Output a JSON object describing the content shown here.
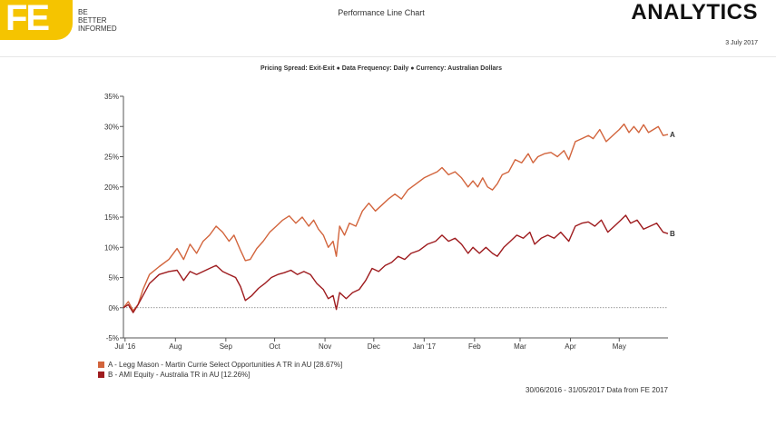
{
  "header": {
    "logo_text": "FE",
    "tagline": [
      "BE",
      "BETTER",
      "INFORMED"
    ],
    "title": "Performance Line Chart",
    "brand": "ANALYTICS",
    "date": "3 July 2017"
  },
  "params": "Pricing Spread: Exit-Exit ● Data Frequency: Daily ● Currency: Australian Dollars",
  "footer": {
    "source": "30/06/2016 - 31/05/2017 Data from FE 2017"
  },
  "chart_data": {
    "type": "line",
    "title": "Performance Line Chart",
    "ylim": [
      -5,
      35
    ],
    "y_ticks": [
      -5,
      0,
      5,
      10,
      15,
      20,
      25,
      30,
      35
    ],
    "y_tick_labels": [
      "-5%",
      "0%",
      "5%",
      "10%",
      "15%",
      "20%",
      "25%",
      "30%",
      "35%"
    ],
    "x_range": [
      "2016-06-30",
      "2017-05-31"
    ],
    "x_ticks": [
      "2016-07-01",
      "2016-08-01",
      "2016-09-01",
      "2016-10-01",
      "2016-11-01",
      "2016-12-01",
      "2017-01-01",
      "2017-02-01",
      "2017-03-01",
      "2017-04-01",
      "2017-05-01"
    ],
    "x_tick_labels": [
      "Jul '16",
      "Aug",
      "Sep",
      "Oct",
      "Nov",
      "Dec",
      "Jan '17",
      "Feb",
      "Mar",
      "Apr",
      "May"
    ],
    "zero_line": true,
    "grid": false,
    "legend_position": "bottom-left",
    "series": [
      {
        "name": "A - Legg Mason - Martin Currie Select Opportunities A TR in AU [28.67%]",
        "end_label": "A",
        "color": "#d2643c",
        "points": [
          [
            "2016-06-30",
            0
          ],
          [
            "2016-07-03",
            1
          ],
          [
            "2016-07-06",
            -0.5
          ],
          [
            "2016-07-09",
            0.5
          ],
          [
            "2016-07-12",
            3
          ],
          [
            "2016-07-16",
            5.5
          ],
          [
            "2016-07-22",
            6.8
          ],
          [
            "2016-07-28",
            8
          ],
          [
            "2016-08-02",
            9.8
          ],
          [
            "2016-08-06",
            8
          ],
          [
            "2016-08-10",
            10.5
          ],
          [
            "2016-08-14",
            9
          ],
          [
            "2016-08-18",
            11
          ],
          [
            "2016-08-22",
            12
          ],
          [
            "2016-08-26",
            13.5
          ],
          [
            "2016-08-30",
            12.5
          ],
          [
            "2016-09-03",
            11
          ],
          [
            "2016-09-06",
            12
          ],
          [
            "2016-09-10",
            9.5
          ],
          [
            "2016-09-13",
            7.8
          ],
          [
            "2016-09-16",
            8
          ],
          [
            "2016-09-20",
            9.8
          ],
          [
            "2016-09-24",
            11
          ],
          [
            "2016-09-28",
            12.5
          ],
          [
            "2016-10-02",
            13.5
          ],
          [
            "2016-10-06",
            14.5
          ],
          [
            "2016-10-10",
            15.2
          ],
          [
            "2016-10-14",
            14
          ],
          [
            "2016-10-18",
            15
          ],
          [
            "2016-10-22",
            13.5
          ],
          [
            "2016-10-25",
            14.5
          ],
          [
            "2016-10-28",
            13
          ],
          [
            "2016-10-31",
            12
          ],
          [
            "2016-11-03",
            10
          ],
          [
            "2016-11-06",
            11
          ],
          [
            "2016-11-08",
            8.5
          ],
          [
            "2016-11-10",
            13.5
          ],
          [
            "2016-11-13",
            12
          ],
          [
            "2016-11-16",
            14
          ],
          [
            "2016-11-20",
            13.5
          ],
          [
            "2016-11-24",
            16
          ],
          [
            "2016-11-28",
            17.3
          ],
          [
            "2016-12-02",
            16
          ],
          [
            "2016-12-06",
            17
          ],
          [
            "2016-12-10",
            18
          ],
          [
            "2016-12-14",
            18.8
          ],
          [
            "2016-12-18",
            18
          ],
          [
            "2016-12-22",
            19.5
          ],
          [
            "2016-12-27",
            20.5
          ],
          [
            "2017-01-01",
            21.5
          ],
          [
            "2017-01-05",
            22
          ],
          [
            "2017-01-09",
            22.5
          ],
          [
            "2017-01-12",
            23.2
          ],
          [
            "2017-01-16",
            22
          ],
          [
            "2017-01-20",
            22.5
          ],
          [
            "2017-01-24",
            21.5
          ],
          [
            "2017-01-28",
            20
          ],
          [
            "2017-01-31",
            21
          ],
          [
            "2017-02-03",
            20
          ],
          [
            "2017-02-06",
            21.5
          ],
          [
            "2017-02-09",
            20
          ],
          [
            "2017-02-12",
            19.5
          ],
          [
            "2017-02-15",
            20.5
          ],
          [
            "2017-02-18",
            22
          ],
          [
            "2017-02-22",
            22.5
          ],
          [
            "2017-02-26",
            24.5
          ],
          [
            "2017-03-02",
            24
          ],
          [
            "2017-03-06",
            25.5
          ],
          [
            "2017-03-09",
            24
          ],
          [
            "2017-03-12",
            25
          ],
          [
            "2017-03-16",
            25.5
          ],
          [
            "2017-03-20",
            25.7
          ],
          [
            "2017-03-24",
            25
          ],
          [
            "2017-03-28",
            26
          ],
          [
            "2017-03-31",
            24.5
          ],
          [
            "2017-04-04",
            27.5
          ],
          [
            "2017-04-08",
            28
          ],
          [
            "2017-04-12",
            28.5
          ],
          [
            "2017-04-15",
            28
          ],
          [
            "2017-04-19",
            29.5
          ],
          [
            "2017-04-23",
            27.5
          ],
          [
            "2017-04-27",
            28.5
          ],
          [
            "2017-05-01",
            29.5
          ],
          [
            "2017-05-04",
            30.4
          ],
          [
            "2017-05-07",
            29
          ],
          [
            "2017-05-10",
            30
          ],
          [
            "2017-05-13",
            29
          ],
          [
            "2017-05-16",
            30.3
          ],
          [
            "2017-05-19",
            29
          ],
          [
            "2017-05-22",
            29.5
          ],
          [
            "2017-05-25",
            30
          ],
          [
            "2017-05-28",
            28.5
          ],
          [
            "2017-05-31",
            28.67
          ]
        ]
      },
      {
        "name": "B - AMI Equity - Australia TR in AU [12.26%]",
        "end_label": "B",
        "color": "#9e1b1e",
        "points": [
          [
            "2016-06-30",
            0
          ],
          [
            "2016-07-03",
            0.5
          ],
          [
            "2016-07-06",
            -0.8
          ],
          [
            "2016-07-09",
            0.5
          ],
          [
            "2016-07-12",
            2
          ],
          [
            "2016-07-16",
            4
          ],
          [
            "2016-07-22",
            5.5
          ],
          [
            "2016-07-28",
            6
          ],
          [
            "2016-08-02",
            6.2
          ],
          [
            "2016-08-06",
            4.5
          ],
          [
            "2016-08-10",
            6
          ],
          [
            "2016-08-14",
            5.5
          ],
          [
            "2016-08-18",
            6
          ],
          [
            "2016-08-22",
            6.5
          ],
          [
            "2016-08-26",
            7
          ],
          [
            "2016-08-30",
            6
          ],
          [
            "2016-09-03",
            5.5
          ],
          [
            "2016-09-07",
            5
          ],
          [
            "2016-09-10",
            3.5
          ],
          [
            "2016-09-13",
            1.2
          ],
          [
            "2016-09-17",
            2
          ],
          [
            "2016-09-21",
            3.2
          ],
          [
            "2016-09-25",
            4
          ],
          [
            "2016-09-29",
            5
          ],
          [
            "2016-10-03",
            5.5
          ],
          [
            "2016-10-07",
            5.8
          ],
          [
            "2016-10-11",
            6.2
          ],
          [
            "2016-10-15",
            5.5
          ],
          [
            "2016-10-19",
            6
          ],
          [
            "2016-10-23",
            5.5
          ],
          [
            "2016-10-27",
            4
          ],
          [
            "2016-10-31",
            3
          ],
          [
            "2016-11-03",
            1.5
          ],
          [
            "2016-11-06",
            2
          ],
          [
            "2016-11-08",
            -0.3
          ],
          [
            "2016-11-10",
            2.5
          ],
          [
            "2016-11-14",
            1.5
          ],
          [
            "2016-11-18",
            2.5
          ],
          [
            "2016-11-22",
            3
          ],
          [
            "2016-11-26",
            4.5
          ],
          [
            "2016-11-30",
            6.5
          ],
          [
            "2016-12-04",
            6
          ],
          [
            "2016-12-08",
            7
          ],
          [
            "2016-12-12",
            7.5
          ],
          [
            "2016-12-16",
            8.5
          ],
          [
            "2016-12-20",
            8
          ],
          [
            "2016-12-24",
            9
          ],
          [
            "2016-12-29",
            9.5
          ],
          [
            "2017-01-03",
            10.5
          ],
          [
            "2017-01-08",
            11
          ],
          [
            "2017-01-12",
            12
          ],
          [
            "2017-01-16",
            11
          ],
          [
            "2017-01-20",
            11.5
          ],
          [
            "2017-01-24",
            10.5
          ],
          [
            "2017-01-28",
            9
          ],
          [
            "2017-01-31",
            10
          ],
          [
            "2017-02-04",
            9
          ],
          [
            "2017-02-08",
            10
          ],
          [
            "2017-02-12",
            9
          ],
          [
            "2017-02-15",
            8.5
          ],
          [
            "2017-02-19",
            10
          ],
          [
            "2017-02-23",
            11
          ],
          [
            "2017-02-27",
            12
          ],
          [
            "2017-03-03",
            11.5
          ],
          [
            "2017-03-07",
            12.5
          ],
          [
            "2017-03-10",
            10.5
          ],
          [
            "2017-03-14",
            11.5
          ],
          [
            "2017-03-18",
            12
          ],
          [
            "2017-03-22",
            11.5
          ],
          [
            "2017-03-26",
            12.5
          ],
          [
            "2017-03-31",
            11
          ],
          [
            "2017-04-04",
            13.5
          ],
          [
            "2017-04-08",
            14
          ],
          [
            "2017-04-12",
            14.2
          ],
          [
            "2017-04-16",
            13.5
          ],
          [
            "2017-04-20",
            14.5
          ],
          [
            "2017-04-24",
            12.5
          ],
          [
            "2017-04-28",
            13.5
          ],
          [
            "2017-05-02",
            14.5
          ],
          [
            "2017-05-05",
            15.3
          ],
          [
            "2017-05-08",
            14
          ],
          [
            "2017-05-12",
            14.5
          ],
          [
            "2017-05-16",
            13
          ],
          [
            "2017-05-20",
            13.5
          ],
          [
            "2017-05-24",
            14
          ],
          [
            "2017-05-28",
            12.5
          ],
          [
            "2017-05-31",
            12.26
          ]
        ]
      }
    ]
  }
}
